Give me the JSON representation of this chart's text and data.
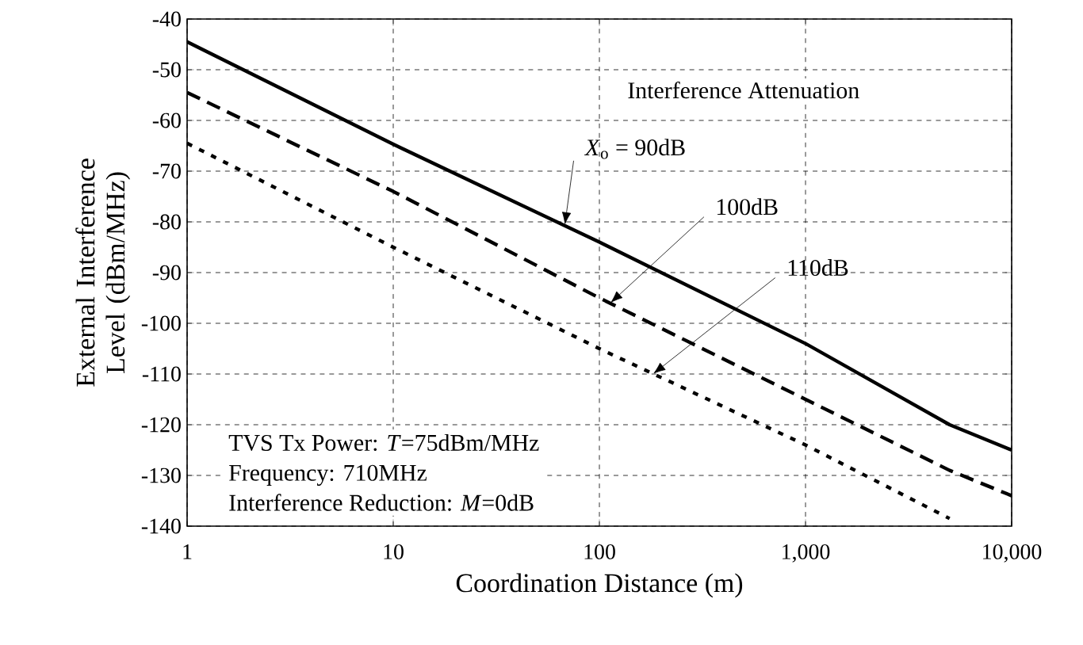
{
  "chart_data": {
    "type": "line",
    "xlabel": "Coordination Distance (m)",
    "ylabel": "External Interference Level (dBm/MHz)",
    "log": "x",
    "grid": true,
    "marker": "none",
    "xlim": [
      1,
      10000
    ],
    "ylim": [
      -140,
      -40
    ],
    "xticks": [
      1,
      10,
      100,
      {
        "value": 1000,
        "label": "1,000"
      },
      {
        "value": 10000,
        "label": "10,000"
      }
    ],
    "yticks": [
      -140,
      -130,
      -120,
      -110,
      -100,
      -90,
      -80,
      -70,
      -60,
      -50,
      -40
    ],
    "series": [
      {
        "color": "#000000",
        "line_style": "solid",
        "x": [
          1,
          10,
          100,
          1000,
          5000,
          10000
        ],
        "values": [
          -44.5,
          -64.7,
          -84,
          -104,
          -120,
          -125
        ]
      },
      {
        "color": "#000000",
        "line_style": "dashed",
        "x": [
          1,
          10,
          100,
          1000,
          5000,
          10000
        ],
        "values": [
          -54.5,
          -74,
          -95,
          -115,
          -129,
          -134
        ]
      },
      {
        "color": "#000000",
        "line_style": "dotted",
        "x": [
          1,
          10,
          100,
          1000,
          5000
        ],
        "values": [
          -64.5,
          -85,
          -105,
          -124,
          -138.5
        ]
      }
    ],
    "annotations": [
      "Interference Attenuation",
      {
        "text": "*X*$_{o}$ = 90dB",
        "x": 68,
        "y": -80.6
      },
      {
        "text": "100dB",
        "x": 113,
        "y": -96
      },
      {
        "text": "110dB",
        "x": 182,
        "y": -110
      },
      "TVS Tx Power: *T*=75dBm/MHz",
      "Frequency: 710MHz",
      "Interference Reduction: *M*=0dB"
    ]
  }
}
